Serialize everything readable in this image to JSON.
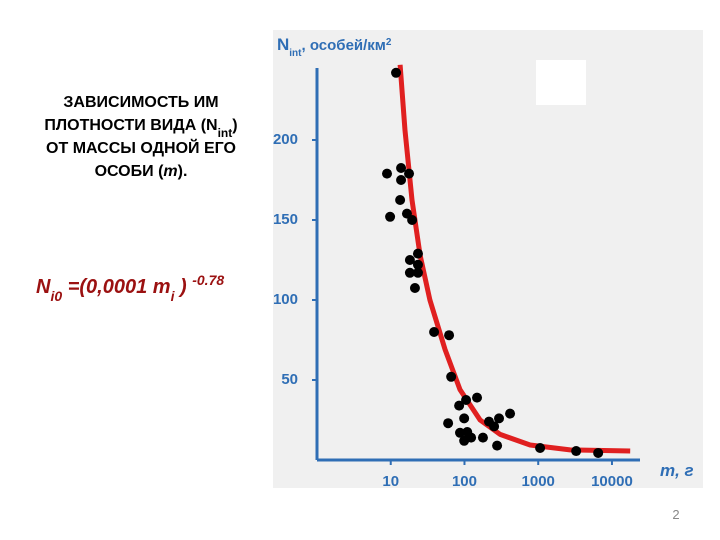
{
  "title": [
    "ЗАВИСИМОСТЬ ИМ",
    "ПЛОТНОСТИ ВИДА (N",
    "int",
    ")",
    "ОТ МАССЫ ОДНОЙ ЕГО",
    "ОСОБИ (",
    "m",
    ")."
  ],
  "formula": [
    "N",
    "i0",
    " =(0,0001 m",
    "i",
    " ) ",
    "-0.78"
  ],
  "page_number": "2",
  "chart_data": {
    "type": "scatter",
    "y_label": [
      "N",
      "int",
      ", особей/км",
      "2"
    ],
    "x_label": "m, г",
    "log_x": true,
    "xlim": [
      1,
      24000
    ],
    "ylim": [
      0,
      250
    ],
    "xticks": [
      10,
      100,
      1000,
      10000
    ],
    "yticks": [
      50,
      100,
      150,
      200
    ],
    "axis_color": "#2f6eb5",
    "background": "#f0f0f0",
    "points": {
      "color": "#000000",
      "x": [
        11.8,
        8.9,
        9.8,
        13.8,
        13.8,
        17.7,
        13.4,
        16.6,
        19.5,
        23.4,
        18.2,
        23.4,
        18.2,
        23.4,
        21.3,
        38.7,
        61.8,
        66,
        84.6,
        60,
        105,
        148,
        99,
        87,
        109,
        123,
        99,
        178,
        215,
        252,
        294,
        415,
        277,
        1060,
        3270,
        6500
      ],
      "y": [
        242,
        179,
        152,
        182.5,
        175,
        179,
        162.5,
        154,
        150,
        129,
        125,
        122,
        117,
        117,
        107.5,
        80,
        78,
        52,
        34,
        23,
        37.5,
        39,
        26,
        17,
        17.5,
        14,
        12,
        14,
        24,
        21,
        26,
        29,
        9,
        7.5,
        5.6,
        4.4
      ]
    },
    "curve": {
      "color": "#e02020",
      "x": [
        13.4,
        15.6,
        19.4,
        25,
        34,
        54.6,
        87,
        163,
        304,
        776,
        2700,
        17700
      ],
      "y": [
        247,
        206,
        162.5,
        128,
        100,
        69,
        44,
        25,
        16,
        9.4,
        6.3,
        5.6
      ]
    }
  }
}
